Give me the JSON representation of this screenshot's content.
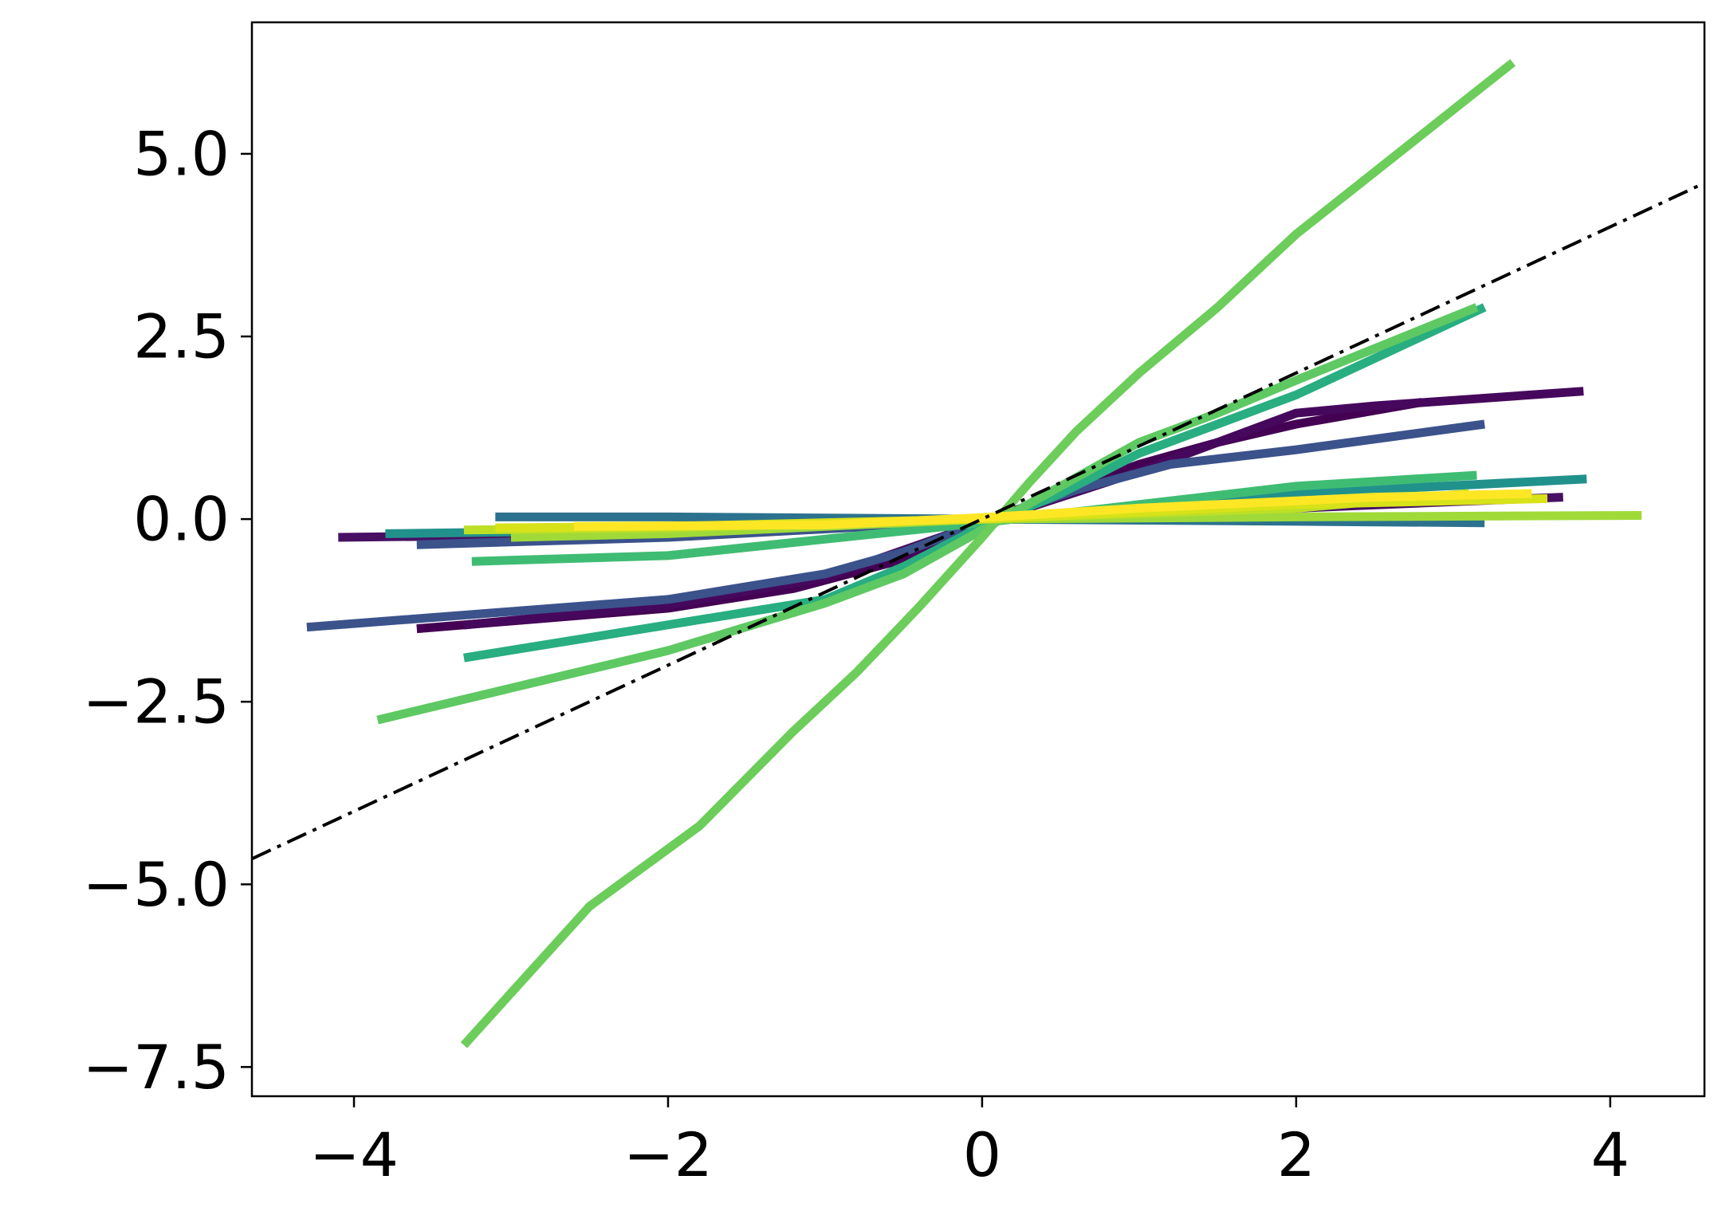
{
  "chart_data": {
    "type": "line",
    "title": "",
    "xlabel": "",
    "ylabel": "",
    "xlim": [
      -4.65,
      4.6
    ],
    "ylim": [
      -7.9,
      6.8
    ],
    "x_ticks": [
      {
        "value": -4,
        "label": "−4"
      },
      {
        "value": -2,
        "label": "−2"
      },
      {
        "value": 0,
        "label": "0"
      },
      {
        "value": 2,
        "label": "2"
      },
      {
        "value": 4,
        "label": "4"
      }
    ],
    "y_ticks": [
      {
        "value": -7.5,
        "label": "−7.5"
      },
      {
        "value": -5.0,
        "label": "−5.0"
      },
      {
        "value": -2.5,
        "label": "−2.5"
      },
      {
        "value": 0.0,
        "label": "0.0"
      },
      {
        "value": 2.5,
        "label": "2.5"
      },
      {
        "value": 5.0,
        "label": "5.0"
      }
    ],
    "grid": false,
    "legend": "none",
    "reference_line": {
      "slope": 1,
      "intercept": 0,
      "color": "#000000",
      "style": "dashdot"
    },
    "series": [
      {
        "color": "#440154",
        "x": [
          -3.6,
          -2.0,
          -1.2,
          -0.5,
          0.0,
          0.5,
          1.0,
          1.5,
          2.0,
          2.8
        ],
        "y": [
          -1.5,
          -1.22,
          -0.95,
          -0.55,
          -0.05,
          0.35,
          0.75,
          1.05,
          1.3,
          1.6
        ]
      },
      {
        "color": "#46085c",
        "x": [
          -3.3,
          -2.0,
          -1.0,
          0.0,
          1.0,
          2.0,
          2.5,
          3.83
        ],
        "y": [
          -1.45,
          -1.18,
          -0.8,
          -0.05,
          0.65,
          1.45,
          1.55,
          1.75
        ]
      },
      {
        "color": "#471063",
        "x": [
          -4.1,
          -2.0,
          0.0,
          2.0,
          3.7
        ],
        "y": [
          -0.25,
          -0.2,
          -0.02,
          0.15,
          0.3
        ]
      },
      {
        "color": "#3b528b",
        "x": [
          -4.3,
          -2.0,
          -1.0,
          -0.5,
          0.0,
          0.6,
          1.2,
          2.0,
          3.2
        ],
        "y": [
          -1.48,
          -1.1,
          -0.75,
          -0.45,
          -0.05,
          0.4,
          0.75,
          0.95,
          1.3
        ]
      },
      {
        "color": "#3b528b",
        "x": [
          -3.6,
          -2.0,
          0.0,
          2.0,
          3.5
        ],
        "y": [
          -0.35,
          -0.25,
          -0.02,
          0.2,
          0.3
        ]
      },
      {
        "color": "#2c728e",
        "x": [
          -3.1,
          -2.0,
          0.0,
          2.0,
          3.2
        ],
        "y": [
          0.03,
          0.03,
          0.0,
          -0.03,
          -0.05
        ]
      },
      {
        "color": "#21918c",
        "x": [
          -3.8,
          -2.0,
          0.0,
          2.0,
          3.85
        ],
        "y": [
          -0.2,
          -0.15,
          -0.02,
          0.35,
          0.55
        ]
      },
      {
        "color": "#28ae80",
        "x": [
          -3.3,
          -1.0,
          -0.5,
          0.0,
          0.5,
          1.0,
          2.0,
          3.2
        ],
        "y": [
          -1.9,
          -1.1,
          -0.65,
          -0.1,
          0.35,
          0.9,
          1.7,
          2.9
        ]
      },
      {
        "color": "#3fbc73",
        "x": [
          -3.25,
          -2.0,
          0.0,
          2.0,
          3.15
        ],
        "y": [
          -0.58,
          -0.5,
          -0.05,
          0.45,
          0.6
        ]
      },
      {
        "color": "#5ec962",
        "x": [
          -3.85,
          -2.0,
          -1.0,
          -0.5,
          0.0,
          0.5,
          1.0,
          1.5,
          2.0,
          3.15
        ],
        "y": [
          -2.75,
          -1.8,
          -1.15,
          -0.75,
          -0.15,
          0.45,
          1.05,
          1.45,
          1.9,
          2.9
        ]
      },
      {
        "color": "#6ccd5a",
        "x": [
          -3.3,
          -2.5,
          -1.8,
          -1.2,
          -0.8,
          -0.4,
          0.0,
          0.3,
          0.6,
          1.0,
          1.5,
          2.0,
          3.38
        ],
        "y": [
          -7.2,
          -5.3,
          -4.2,
          -2.9,
          -2.1,
          -1.2,
          -0.25,
          0.5,
          1.2,
          2.0,
          2.9,
          3.9,
          6.25
        ]
      },
      {
        "color": "#a0da39",
        "x": [
          -3.0,
          -2.0,
          0.0,
          2.0,
          4.2
        ],
        "y": [
          -0.25,
          -0.2,
          0.0,
          0.03,
          0.05
        ]
      },
      {
        "color": "#bddf26",
        "x": [
          -3.3,
          -2.0,
          0.0,
          2.0,
          3.1
        ],
        "y": [
          -0.15,
          -0.12,
          0.0,
          0.15,
          0.35
        ]
      },
      {
        "color": "#d8e219",
        "x": [
          -3.1,
          -2.0,
          0.0,
          2.0,
          3.6
        ],
        "y": [
          -0.12,
          -0.1,
          0.0,
          0.2,
          0.28
        ]
      },
      {
        "color": "#fde725",
        "x": [
          -2.6,
          -1.0,
          0.0,
          1.0,
          2.5,
          3.5
        ],
        "y": [
          -0.1,
          -0.08,
          0.02,
          0.15,
          0.3,
          0.35
        ]
      }
    ]
  }
}
